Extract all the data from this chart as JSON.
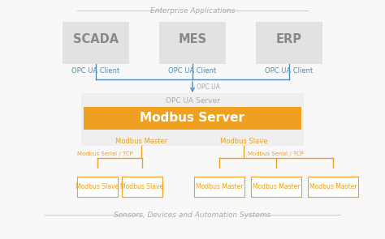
{
  "bg_color": "#f8f8f8",
  "top_label": "Enterprise Applications",
  "bottom_label": "Sensors, Devices and Automation Systems",
  "gray_box_color": "#e2e2e2",
  "orange_color": "#f0a020",
  "blue_color": "#4a8fc0",
  "white_color": "#ffffff",
  "server_bg": "#efefef",
  "top_boxes": [
    "SCADA",
    "MES",
    "ERP"
  ],
  "top_box_subtitles": [
    "OPC UA Client",
    "OPC UA Client",
    "OPC UA Client"
  ],
  "server_box_label": "OPC UA Server",
  "modbus_server_label": "Modbus Server",
  "modbus_left": "Modbus Master",
  "modbus_right": "Modbus Slave",
  "serial_label": "Modbus Serial / TCP",
  "bottom_left_boxes": [
    "Modbus Slave",
    "Modbus Slave"
  ],
  "bottom_right_boxes": [
    "Modbus Master",
    "Modbus Master",
    "Modbus Master"
  ],
  "opc_ua_label": "OPC UA"
}
